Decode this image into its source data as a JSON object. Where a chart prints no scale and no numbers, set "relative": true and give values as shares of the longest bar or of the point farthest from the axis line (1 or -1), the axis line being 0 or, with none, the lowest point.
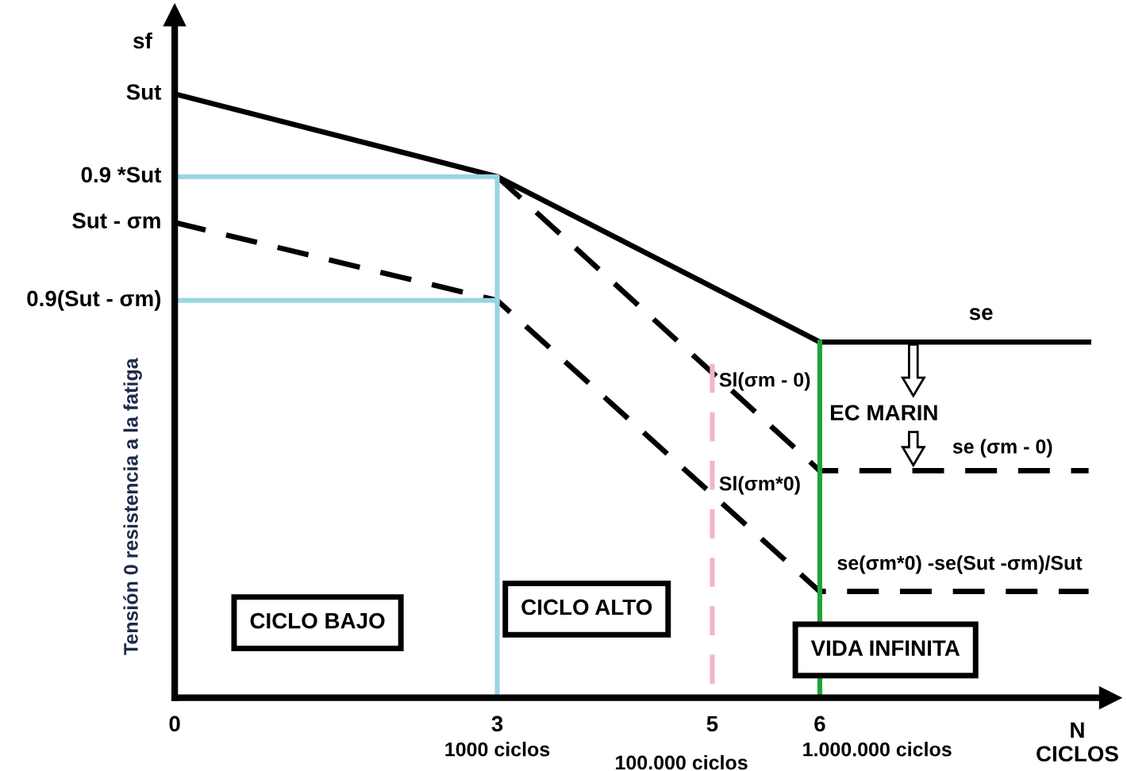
{
  "chart_data": {
    "type": "line",
    "relative": true,
    "xlabel": "N\nCICLOS",
    "ylabel": "Tensión 0 resistencia a la fatiga",
    "xlim": [
      0,
      8.7
    ],
    "xticks": [
      0,
      3,
      5,
      6
    ],
    "marker": "none",
    "grid": false,
    "legend": false,
    "series": [
      {
        "color": "#000000",
        "line_style": "solid",
        "x": [
          0,
          3,
          6,
          8.5
        ],
        "values": [
          1,
          0.863,
          0.589,
          0.589
        ]
      },
      {
        "color": "#000000",
        "line_style": "dashed",
        "x": [
          3,
          6,
          8.5
        ],
        "values": [
          0.863,
          0.376,
          0.376
        ]
      },
      {
        "color": "#000000",
        "line_style": "dashed",
        "x": [
          0,
          3,
          6,
          8.5
        ],
        "values": [
          0.787,
          0.658,
          0.176,
          0.176
        ]
      },
      {
        "color": "#99d5e6",
        "line_style": "solid",
        "x": [
          0,
          3,
          3
        ],
        "values": [
          0.863,
          0.863,
          0
        ]
      },
      {
        "color": "#99d5e6",
        "line_style": "solid",
        "x": [
          0,
          3
        ],
        "values": [
          0.658,
          0.658
        ]
      },
      {
        "color": "#f4b6c8",
        "line_style": "dashed",
        "x": [
          5,
          5
        ],
        "values": [
          0.553,
          0
        ]
      },
      {
        "color": "#22a33a",
        "line_style": "solid",
        "x": [
          6,
          6
        ],
        "values": [
          0.589,
          0
        ]
      }
    ],
    "annotations": [
      {
        "text": "Sut",
        "x": 0,
        "y": 1
      },
      {
        "text": "0.9 *Sut",
        "x": 0,
        "y": 0.863
      },
      {
        "text": "Sut - σm",
        "x": 0,
        "y": 0.787
      },
      {
        "text": "0.9(Sut - σm)",
        "x": 0,
        "y": 0.658
      },
      {
        "text": "se",
        "x": 7.5,
        "y": 0.589
      },
      {
        "text": "Sl(σm - 0)",
        "x": 5,
        "y": 0.553
      },
      {
        "text": "se (σm - 0)",
        "x": 7.7,
        "y": 0.376
      },
      {
        "text": "Sl(σm*0)",
        "x": 5,
        "y": 0.33
      },
      {
        "text": "se(σm*0) -se(Sut -σm)/Sut",
        "x": 7.3,
        "y": 0.176
      },
      {
        "text": "1000 ciclos",
        "x": 3,
        "y": 0
      },
      {
        "text": "100.000 ciclos",
        "x": 5,
        "y": 0
      },
      {
        "text": "1.000.000 ciclos",
        "x": 6,
        "y": 0
      },
      "sf",
      "EC MARIN",
      "CICLO BAJO",
      "CICLO ALTO",
      "VIDA INFINITA"
    ]
  }
}
